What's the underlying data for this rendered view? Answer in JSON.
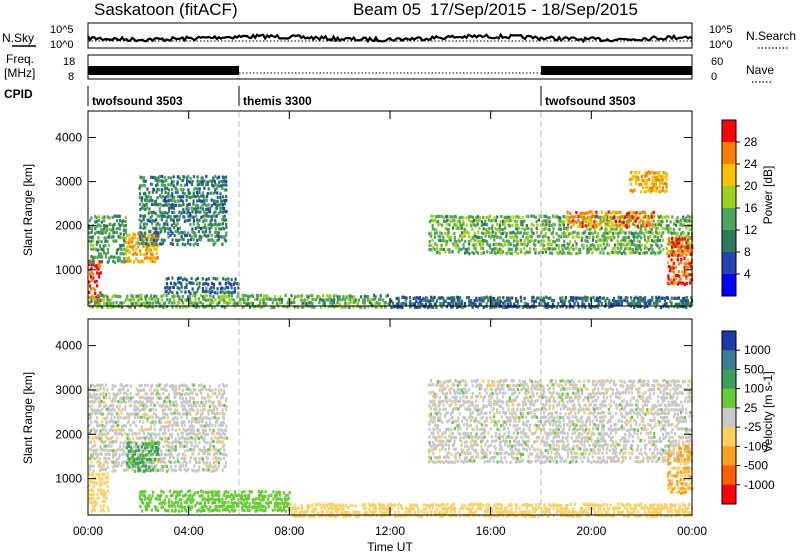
{
  "header": {
    "station": "Saskatoon (fitACF)",
    "beam": "Beam 05",
    "date_range": "17/Sep/2015 - 18/Sep/2015"
  },
  "top_panels": {
    "nsky_label": "N.Sky",
    "nsky_ticks": [
      "10^5",
      "10^0"
    ],
    "nsearch_ticks": [
      "10^5",
      "10^0"
    ],
    "nsearch_label": "N.Search",
    "freq_label": "Freq.",
    "freq_unit": "[MHz]",
    "freq_ticks": [
      "18",
      "8"
    ],
    "nave_ticks": [
      "60",
      "0"
    ],
    "nave_label": "Nave",
    "cpid_label": "CPID",
    "cpid_segments": [
      {
        "name": "twofsound 3503",
        "start_h": 0,
        "end_h": 6
      },
      {
        "name": "themis 3300",
        "start_h": 6,
        "end_h": 18
      },
      {
        "name": "twofsound 3503",
        "start_h": 18,
        "end_h": 24
      }
    ]
  },
  "axes": {
    "ylabel": "Slant Range [km]",
    "xlabel": "Time UT",
    "yticks": [
      "1000",
      "2000",
      "3000",
      "4000"
    ],
    "xticks": [
      "00:00",
      "04:00",
      "08:00",
      "12:00",
      "16:00",
      "20:00",
      "00:00"
    ],
    "xlim_hours": [
      0,
      24
    ],
    "ylim_km": [
      180,
      4600
    ]
  },
  "power_colorbar": {
    "label": "Power [dB]",
    "ticks": [
      "28",
      "24",
      "20",
      "16",
      "12",
      "8",
      "4"
    ],
    "colors": [
      "#0000ff",
      "#2244b0",
      "#2d7a5a",
      "#4ca55a",
      "#9cd020",
      "#ffc000",
      "#ff8000",
      "#ff0000"
    ]
  },
  "velocity_colorbar": {
    "label": "Velocity [m s-1]",
    "ticks": [
      "1000",
      "500",
      "100",
      "25",
      "-25",
      "-100",
      "-500",
      "-1000"
    ],
    "colors": [
      "#1a3aaa",
      "#3c7c96",
      "#3aa05a",
      "#66cc33",
      "#c8c8c8",
      "#ffd060",
      "#ffa020",
      "#ff6000",
      "#ff0000"
    ]
  },
  "chart_data": {
    "type": "heatmap",
    "title": "Saskatoon (fitACF) Beam 05 17/Sep/2015 - 18/Sep/2015",
    "xlabel": "Time UT",
    "ylabel": "Slant Range [km]",
    "xlim": [
      0,
      24
    ],
    "ylim": [
      180,
      4600
    ],
    "grid": false,
    "panels": [
      {
        "name": "Power [dB]",
        "value_range": [
          0,
          30
        ],
        "echo_regions": [
          {
            "t0": 0.0,
            "t1": 0.5,
            "r0": 300,
            "r1": 1300,
            "value": 28
          },
          {
            "t0": 0.0,
            "t1": 1.5,
            "r0": 1200,
            "r1": 2300,
            "value": 12
          },
          {
            "t0": 1.5,
            "t1": 2.8,
            "r0": 1200,
            "r1": 1900,
            "value": 22
          },
          {
            "t0": 2.0,
            "t1": 5.5,
            "r0": 1600,
            "r1": 3200,
            "value": 10
          },
          {
            "t0": 3.0,
            "t1": 6.0,
            "r0": 500,
            "r1": 900,
            "value": 8
          },
          {
            "t0": 0.0,
            "t1": 12.0,
            "r0": 180,
            "r1": 500,
            "value": 14
          },
          {
            "t0": 12.0,
            "t1": 24.0,
            "r0": 180,
            "r1": 450,
            "value": 8
          },
          {
            "t0": 13.5,
            "t1": 24.0,
            "r0": 1400,
            "r1": 2300,
            "value": 14
          },
          {
            "t0": 19.0,
            "t1": 22.5,
            "r0": 2000,
            "r1": 2400,
            "value": 24
          },
          {
            "t0": 21.5,
            "t1": 23.0,
            "r0": 2800,
            "r1": 3300,
            "value": 22
          },
          {
            "t0": 23.0,
            "t1": 24.0,
            "r0": 700,
            "r1": 1800,
            "value": 26
          }
        ]
      },
      {
        "name": "Velocity [m s-1]",
        "value_range": [
          -1000,
          1000
        ],
        "echo_regions": [
          {
            "t0": 0.0,
            "t1": 0.8,
            "r0": 300,
            "r1": 1200,
            "value": -60
          },
          {
            "t0": 0.0,
            "t1": 5.5,
            "r0": 1200,
            "r1": 3200,
            "value": 0
          },
          {
            "t0": 1.5,
            "t1": 2.8,
            "r0": 1200,
            "r1": 1900,
            "value": 120
          },
          {
            "t0": 2.0,
            "t1": 8.0,
            "r0": 300,
            "r1": 800,
            "value": 60
          },
          {
            "t0": 8.0,
            "t1": 24.0,
            "r0": 180,
            "r1": 500,
            "value": -60
          },
          {
            "t0": 13.5,
            "t1": 24.0,
            "r0": 1400,
            "r1": 3300,
            "value": 0
          },
          {
            "t0": 23.0,
            "t1": 24.0,
            "r0": 700,
            "r1": 1800,
            "value": -100
          }
        ]
      }
    ]
  }
}
